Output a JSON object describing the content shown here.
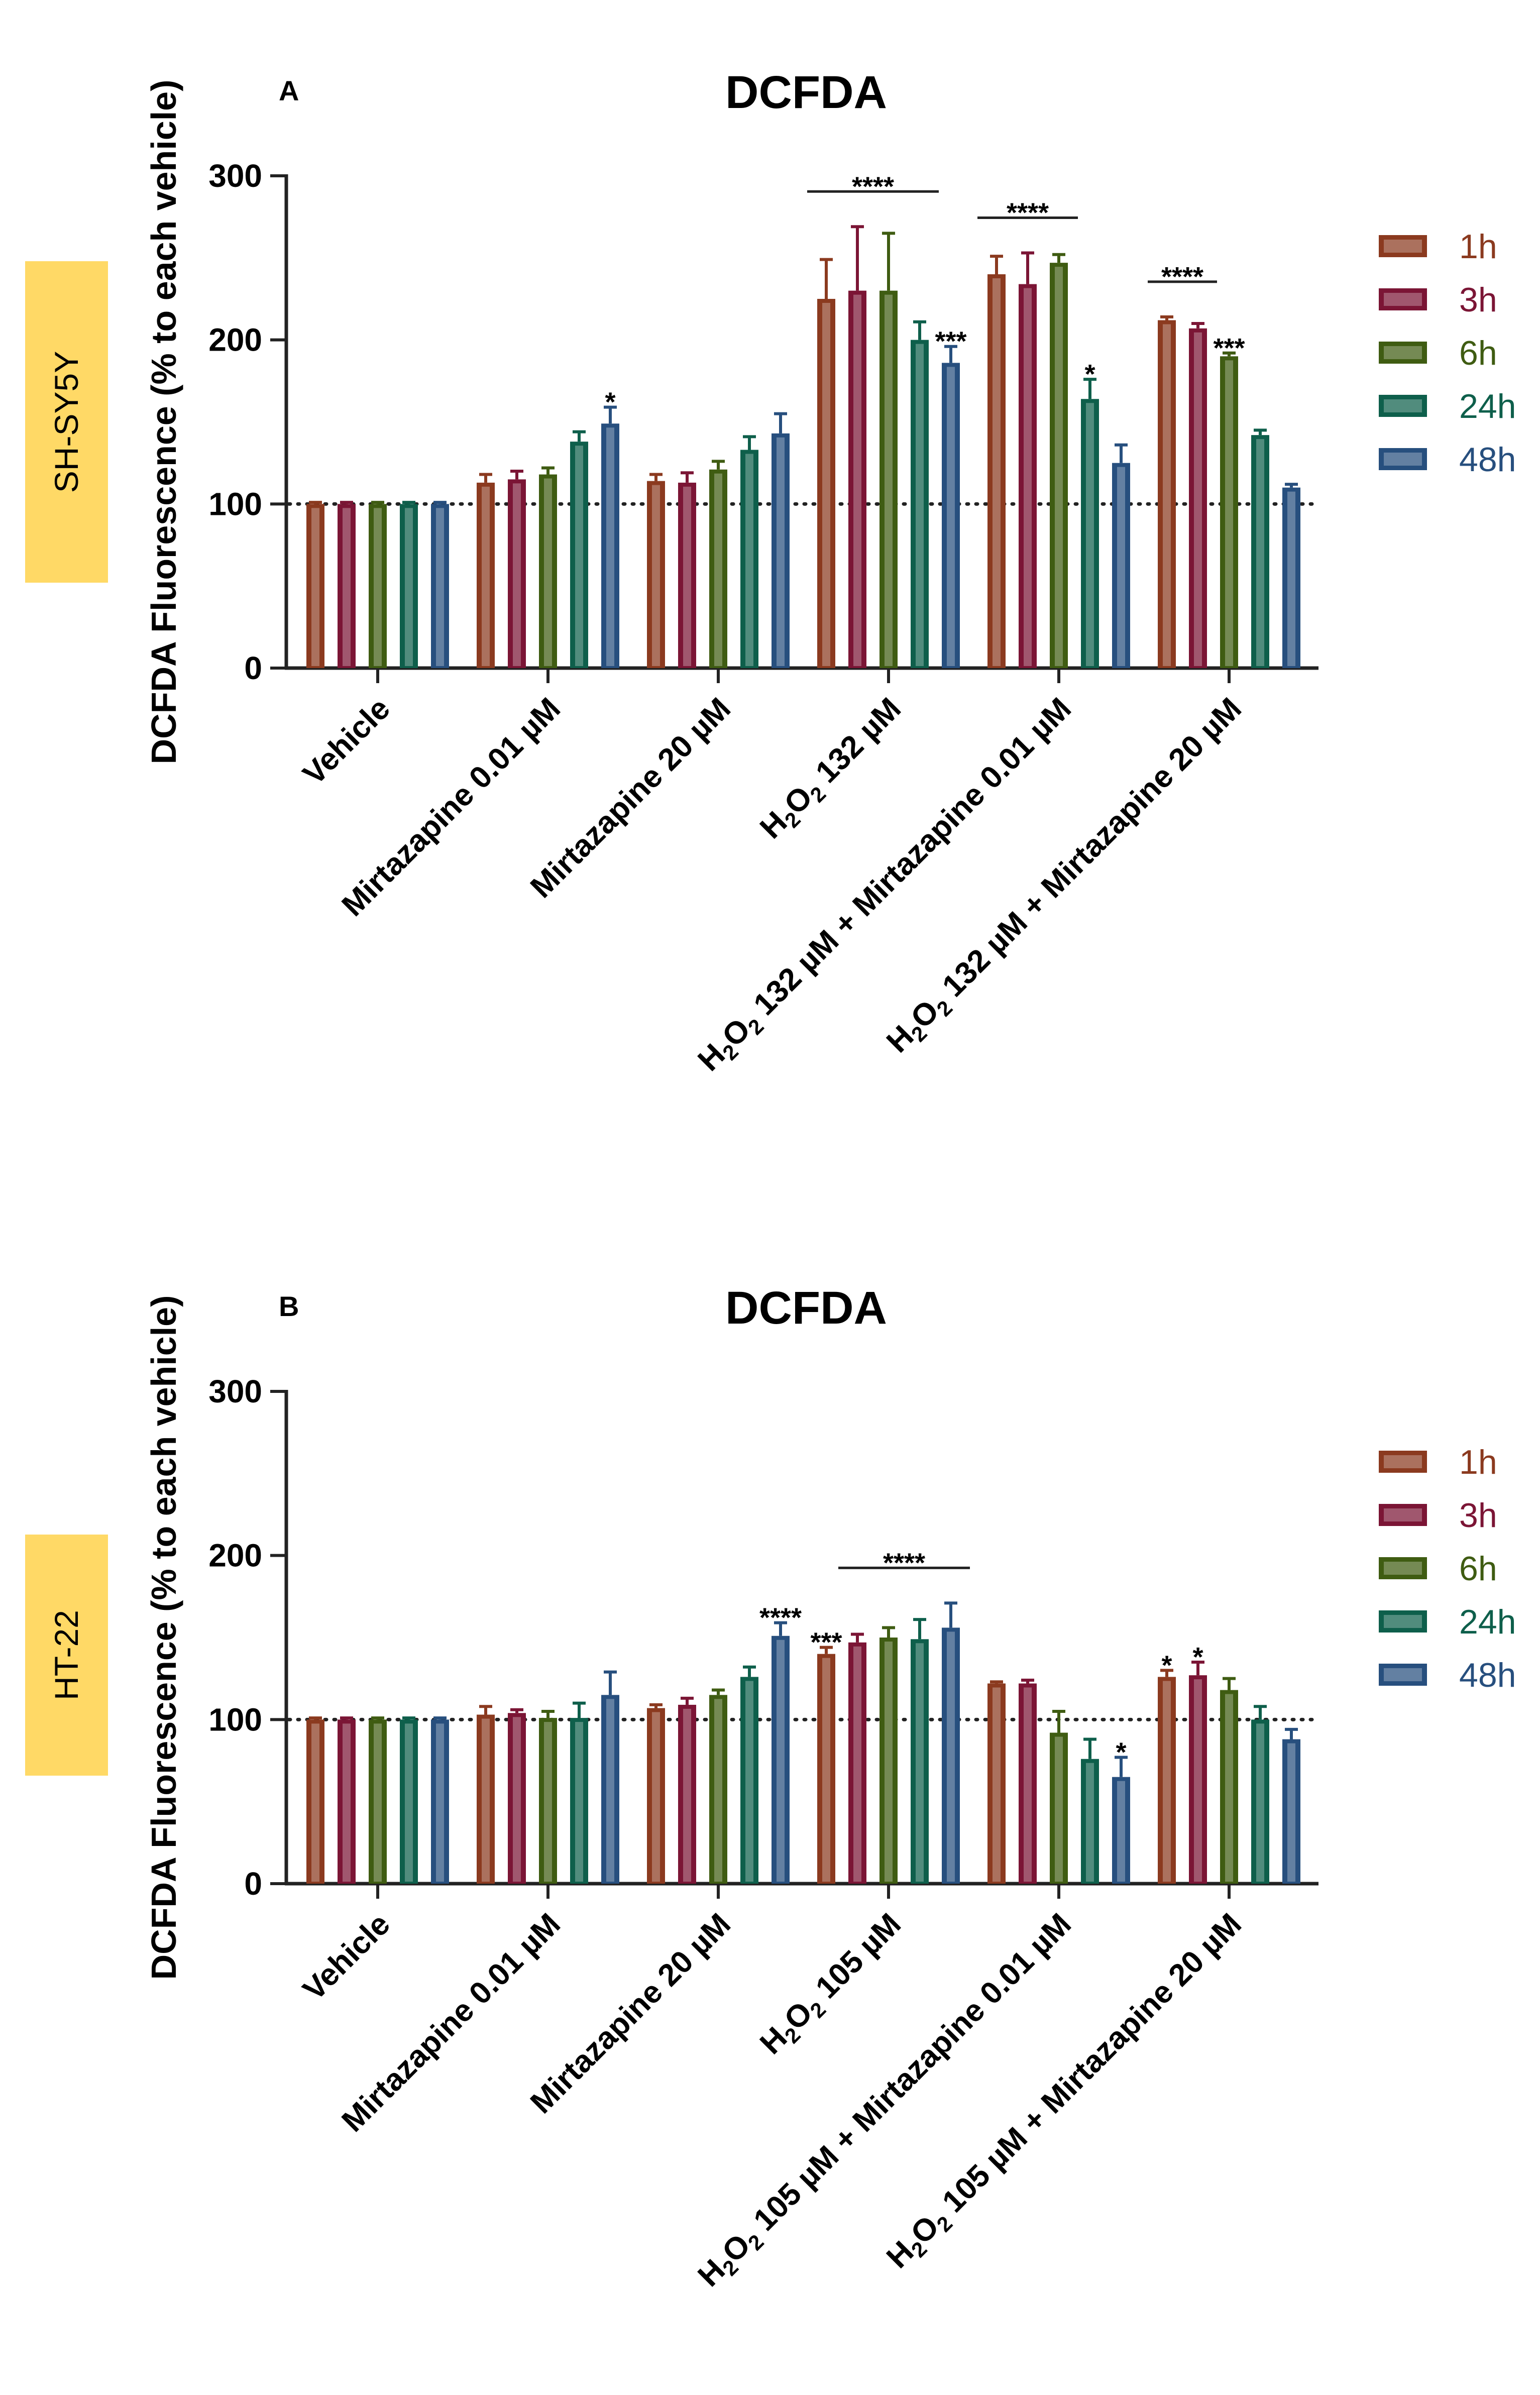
{
  "chart_data": [
    {
      "type": "bar",
      "panel": "A",
      "cell_line": "SH-SY5Y",
      "title": "DCFDA",
      "xlabel": "",
      "ylabel": "DCFDA  Fluorescence (% to each vehicle)",
      "ylim": [
        0,
        300
      ],
      "yticks": [
        0,
        100,
        200,
        300
      ],
      "reference_line": 100,
      "categories": [
        {
          "main": "Vehicle"
        },
        {
          "main": "Mirtazapine 0.01 µM"
        },
        {
          "main": "Mirtazapine 20 µM"
        },
        {
          "pre": "H",
          "sub1": "2",
          "mid": "O",
          "sub2": "2",
          "post": " 132 µM"
        },
        {
          "pre": "H",
          "sub1": "2",
          "mid": "O",
          "sub2": "2",
          "post": " 132 µM + Mirtazapine 0.01 µM"
        },
        {
          "pre": "H",
          "sub1": "2",
          "mid": "O",
          "sub2": "2",
          "post": " 132 µM + Mirtazapine 20 µM"
        }
      ],
      "series": [
        {
          "name": "1h",
          "color": "#8B3A1F",
          "values": [
            100,
            113,
            114,
            225,
            240,
            212
          ],
          "errors": [
            1,
            5,
            4,
            24,
            11,
            2
          ]
        },
        {
          "name": "3h",
          "color": "#7B1535",
          "values": [
            100,
            115,
            113,
            230,
            234,
            207
          ],
          "errors": [
            1,
            5,
            6,
            39,
            19,
            3
          ]
        },
        {
          "name": "6h",
          "color": "#3F5C12",
          "values": [
            100,
            118,
            121,
            230,
            247,
            190
          ],
          "errors": [
            1,
            4,
            5,
            35,
            5,
            2
          ]
        },
        {
          "name": "24h",
          "color": "#0E5F4B",
          "values": [
            100,
            138,
            133,
            200,
            164,
            142
          ],
          "errors": [
            1,
            6,
            8,
            11,
            12,
            3
          ]
        },
        {
          "name": "48h",
          "color": "#274F7E",
          "values": [
            100,
            149,
            143,
            186,
            125,
            110
          ],
          "errors": [
            1,
            10,
            12,
            10,
            11,
            2
          ]
        }
      ],
      "significance": [
        {
          "text": "*",
          "category": 1,
          "series": 4
        },
        {
          "text": "****",
          "from": [
            3,
            0
          ],
          "to": [
            3,
            3
          ]
        },
        {
          "text": "***",
          "category": 3,
          "series": 4
        },
        {
          "text": "****",
          "from": [
            4,
            0
          ],
          "to": [
            4,
            2
          ]
        },
        {
          "text": "*",
          "category": 4,
          "series": 3
        },
        {
          "text": "****",
          "from": [
            5,
            0
          ],
          "to": [
            5,
            1
          ]
        },
        {
          "text": "***",
          "category": 5,
          "series": 2
        }
      ]
    },
    {
      "type": "bar",
      "panel": "B",
      "cell_line": "HT-22",
      "title": "DCFDA",
      "xlabel": "",
      "ylabel": "DCFDA  Fluorescence (% to each vehicle)",
      "ylim": [
        0,
        300
      ],
      "yticks": [
        0,
        100,
        200,
        300
      ],
      "reference_line": 100,
      "categories": [
        {
          "main": "Vehicle"
        },
        {
          "main": "Mirtazapine 0.01 µM"
        },
        {
          "main": "Mirtazapine 20 µM"
        },
        {
          "pre": "H",
          "sub1": "2",
          "mid": "O",
          "sub2": "2",
          "post": " 105 µM"
        },
        {
          "pre": "H",
          "sub1": "2",
          "mid": "O",
          "sub2": "2",
          "post": " 105 µM + Mirtazapine 0.01 µM"
        },
        {
          "pre": "H",
          "sub1": "2",
          "mid": "O",
          "sub2": "2",
          "post": " 105 µM + Mirtazapine 20 µM"
        }
      ],
      "series": [
        {
          "name": "1h",
          "color": "#8B3A1F",
          "values": [
            100,
            103,
            107,
            140,
            122,
            126
          ],
          "errors": [
            1,
            5,
            2,
            4,
            1,
            4
          ]
        },
        {
          "name": "3h",
          "color": "#7B1535",
          "values": [
            100,
            104,
            109,
            147,
            122,
            127
          ],
          "errors": [
            1,
            2,
            4,
            5,
            2,
            8
          ]
        },
        {
          "name": "6h",
          "color": "#3F5C12",
          "values": [
            100,
            101,
            115,
            150,
            92,
            118
          ],
          "errors": [
            1,
            4,
            3,
            6,
            13,
            7
          ]
        },
        {
          "name": "24h",
          "color": "#0E5F4B",
          "values": [
            100,
            101,
            126,
            149,
            76,
            100
          ],
          "errors": [
            1,
            9,
            6,
            12,
            12,
            8
          ]
        },
        {
          "name": "48h",
          "color": "#274F7E",
          "values": [
            100,
            115,
            151,
            156,
            65,
            88
          ],
          "errors": [
            1,
            14,
            8,
            15,
            12,
            6
          ]
        }
      ],
      "significance": [
        {
          "text": "****",
          "category": 2,
          "series": 4
        },
        {
          "text": "***",
          "category": 3,
          "series": 0
        },
        {
          "text": "****",
          "from": [
            3,
            1
          ],
          "to": [
            3,
            4
          ]
        },
        {
          "text": "*",
          "category": 4,
          "series": 4
        },
        {
          "text": "*",
          "category": 5,
          "series": 0
        },
        {
          "text": "*",
          "category": 5,
          "series": 1
        }
      ]
    }
  ]
}
